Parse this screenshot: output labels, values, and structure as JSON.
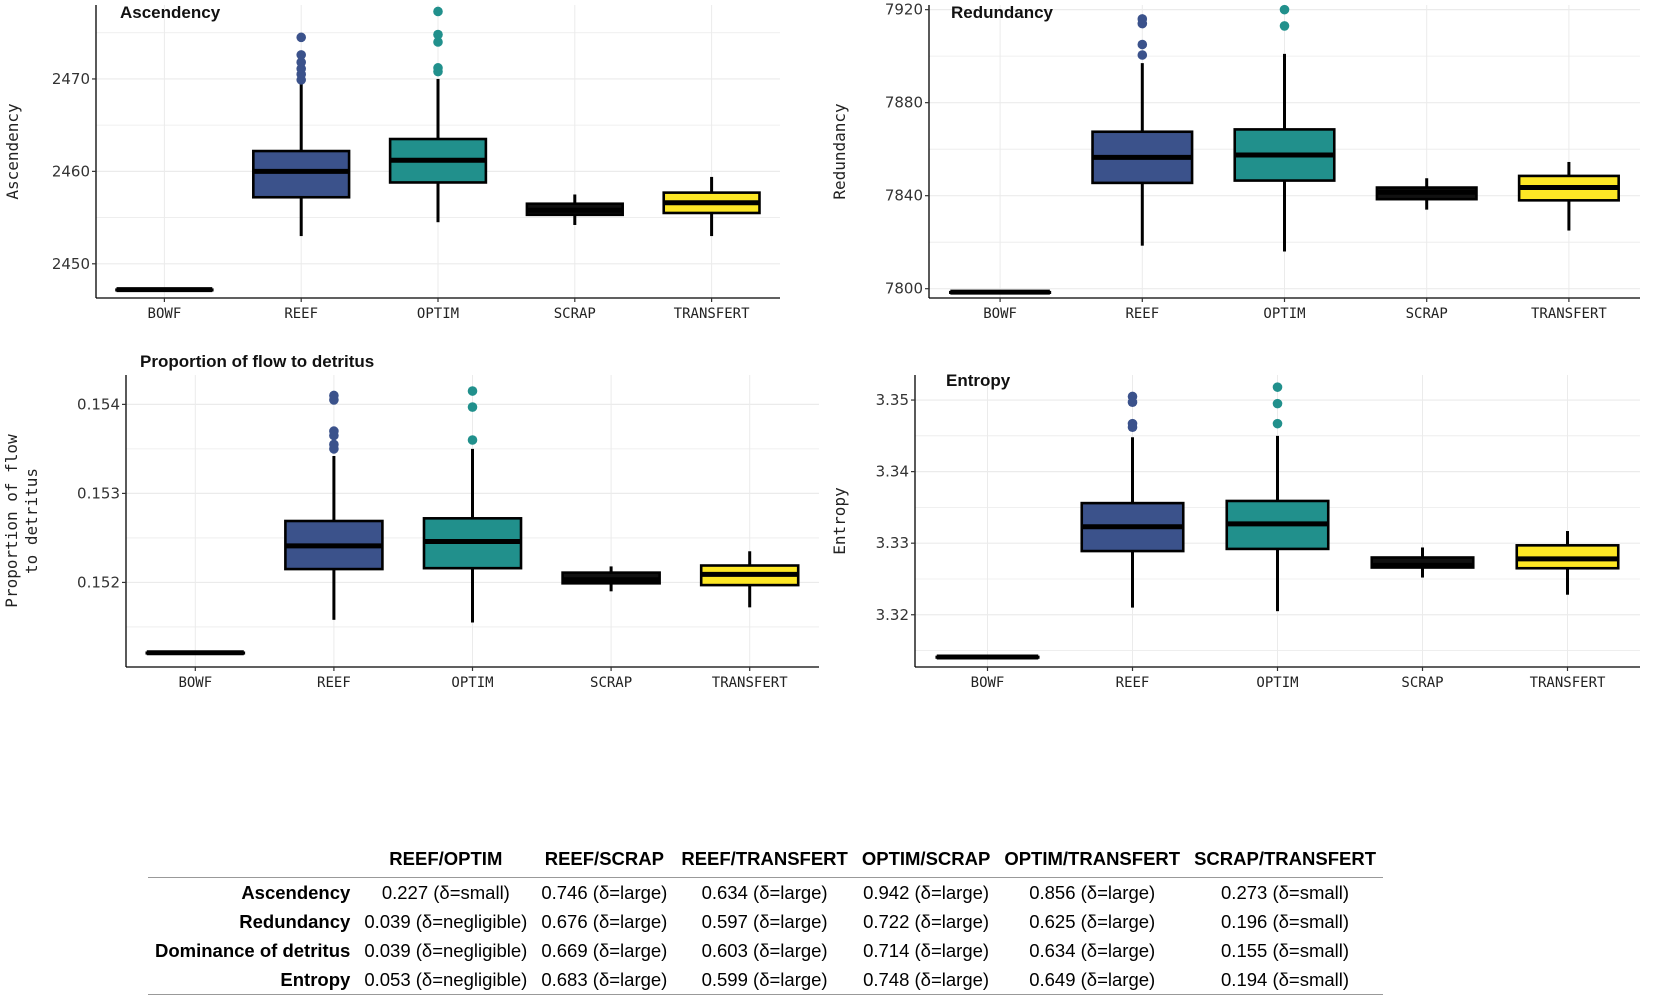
{
  "colors": {
    "BOWF": "#111111",
    "REEF": "#3b528b",
    "OPTIM": "#21908c",
    "SCRAP": "#111111",
    "TRANSFERT": "#fde725",
    "grid": "#ebebeb"
  },
  "chart_data": [
    {
      "type": "box",
      "title": "Ascendency",
      "ylabel": "Ascendency",
      "categories": [
        "BOWF",
        "REEF",
        "OPTIM",
        "SCRAP",
        "TRANSFERT"
      ],
      "ylim": [
        2446.3,
        2478
      ],
      "yticks": [
        2450,
        2460,
        2470
      ],
      "boxes": [
        {
          "q1": 2447.2,
          "median": 2447.2,
          "q3": 2447.2,
          "lower": 2447.2,
          "upper": 2447.2,
          "outliers": []
        },
        {
          "q1": 2457.2,
          "median": 2460,
          "q3": 2462.2,
          "lower": 2453,
          "upper": 2469.5,
          "outliers": [
            2469.9,
            2470.5,
            2471.1,
            2471.8,
            2472.6,
            2474.5
          ]
        },
        {
          "q1": 2458.8,
          "median": 2461.2,
          "q3": 2463.5,
          "lower": 2454.5,
          "upper": 2470,
          "outliers": [
            2470.8,
            2471.2,
            2474,
            2474.8,
            2477.3
          ]
        },
        {
          "q1": 2455.3,
          "median": 2455.8,
          "q3": 2456.5,
          "lower": 2454.2,
          "upper": 2457.5,
          "outliers": []
        },
        {
          "q1": 2455.5,
          "median": 2456.6,
          "q3": 2457.7,
          "lower": 2453,
          "upper": 2459.4,
          "outliers": []
        }
      ]
    },
    {
      "type": "box",
      "title": "Redundancy",
      "ylabel": "Redundancy",
      "categories": [
        "BOWF",
        "REEF",
        "OPTIM",
        "SCRAP",
        "TRANSFERT"
      ],
      "ylim": [
        7796,
        7922
      ],
      "yticks": [
        7800,
        7840,
        7880,
        7920
      ],
      "boxes": [
        {
          "q1": 7798.5,
          "median": 7798.5,
          "q3": 7798.5,
          "lower": 7798.5,
          "upper": 7798.5,
          "outliers": []
        },
        {
          "q1": 7845.5,
          "median": 7856.5,
          "q3": 7867.5,
          "lower": 7818.5,
          "upper": 7897,
          "outliers": [
            7900.5,
            7905,
            7914,
            7916
          ]
        },
        {
          "q1": 7846.5,
          "median": 7857.5,
          "q3": 7868.5,
          "lower": 7816,
          "upper": 7901,
          "outliers": [
            7913,
            7920
          ]
        },
        {
          "q1": 7838.5,
          "median": 7841.5,
          "q3": 7843.5,
          "lower": 7834,
          "upper": 7847.5,
          "outliers": []
        },
        {
          "q1": 7838,
          "median": 7843.5,
          "q3": 7848.5,
          "lower": 7825,
          "upper": 7854.5,
          "outliers": []
        }
      ]
    },
    {
      "type": "box",
      "title": "Proportion of flow to detritus",
      "ylabel": "Proportion of flow\nto detritus",
      "categories": [
        "BOWF",
        "REEF",
        "OPTIM",
        "SCRAP",
        "TRANSFERT"
      ],
      "ylim": [
        0.15105,
        0.15433
      ],
      "yticks": [
        0.152,
        0.153,
        0.154
      ],
      "ytick_labels": [
        "0.152",
        "0.153",
        "0.154"
      ],
      "boxes": [
        {
          "q1": 0.15121,
          "median": 0.15121,
          "q3": 0.15121,
          "lower": 0.15121,
          "upper": 0.15121,
          "outliers": []
        },
        {
          "q1": 0.15215,
          "median": 0.15241,
          "q3": 0.15269,
          "lower": 0.15158,
          "upper": 0.15342,
          "outliers": [
            0.1535,
            0.15355,
            0.15365,
            0.1537,
            0.15405,
            0.1541
          ]
        },
        {
          "q1": 0.15216,
          "median": 0.15246,
          "q3": 0.15272,
          "lower": 0.15155,
          "upper": 0.1535,
          "outliers": [
            0.1536,
            0.15397,
            0.15415
          ]
        },
        {
          "q1": 0.15199,
          "median": 0.15203,
          "q3": 0.15211,
          "lower": 0.1519,
          "upper": 0.15218,
          "outliers": []
        },
        {
          "q1": 0.15197,
          "median": 0.15209,
          "q3": 0.15219,
          "lower": 0.15172,
          "upper": 0.15235,
          "outliers": []
        }
      ]
    },
    {
      "type": "box",
      "title": "Entropy",
      "ylabel": "Entropy",
      "categories": [
        "BOWF",
        "REEF",
        "OPTIM",
        "SCRAP",
        "TRANSFERT"
      ],
      "ylim": [
        3.3127,
        3.3535
      ],
      "yticks": [
        3.32,
        3.33,
        3.34,
        3.35
      ],
      "ytick_labels": [
        "3.32",
        "3.33",
        "3.34",
        "3.35"
      ],
      "boxes": [
        {
          "q1": 3.3141,
          "median": 3.3141,
          "q3": 3.3141,
          "lower": 3.3141,
          "upper": 3.3141,
          "outliers": []
        },
        {
          "q1": 3.3289,
          "median": 3.3323,
          "q3": 3.3356,
          "lower": 3.321,
          "upper": 3.3448,
          "outliers": [
            3.3462,
            3.3467,
            3.3497,
            3.3505
          ]
        },
        {
          "q1": 3.3292,
          "median": 3.3327,
          "q3": 3.3359,
          "lower": 3.3205,
          "upper": 3.345,
          "outliers": [
            3.3467,
            3.3495,
            3.3518
          ]
        },
        {
          "q1": 3.3266,
          "median": 3.3269,
          "q3": 3.328,
          "lower": 3.3252,
          "upper": 3.3294,
          "outliers": []
        },
        {
          "q1": 3.3265,
          "median": 3.3278,
          "q3": 3.3297,
          "lower": 3.3228,
          "upper": 3.3317,
          "outliers": []
        }
      ]
    }
  ],
  "table": {
    "headers": [
      "",
      "REEF/OPTIM",
      "REEF/SCRAP",
      "REEF/TRANSFERT",
      "OPTIM/SCRAP",
      "OPTIM/TRANSFERT",
      "SCRAP/TRANSFERT"
    ],
    "rows": [
      {
        "label": "Ascendency",
        "cells": [
          "0.227 (δ=small)",
          "0.746 (δ=large)",
          "0.634 (δ=large)",
          "0.942 (δ=large)",
          "0.856 (δ=large)",
          "0.273 (δ=small)"
        ]
      },
      {
        "label": "Redundancy",
        "cells": [
          "0.039 (δ=negligible)",
          "0.676 (δ=large)",
          "0.597 (δ=large)",
          "0.722 (δ=large)",
          "0.625 (δ=large)",
          "0.196 (δ=small)"
        ]
      },
      {
        "label": "Dominance of detritus",
        "cells": [
          "0.039 (δ=negligible)",
          "0.669 (δ=large)",
          "0.603 (δ=large)",
          "0.714 (δ=large)",
          "0.634 (δ=large)",
          "0.155 (δ=small)"
        ]
      },
      {
        "label": "Entropy",
        "cells": [
          "0.053 (δ=negligible)",
          "0.683 (δ=large)",
          "0.599 (δ=large)",
          "0.748 (δ=large)",
          "0.649 (δ=large)",
          "0.194 (δ=small)"
        ]
      }
    ]
  }
}
